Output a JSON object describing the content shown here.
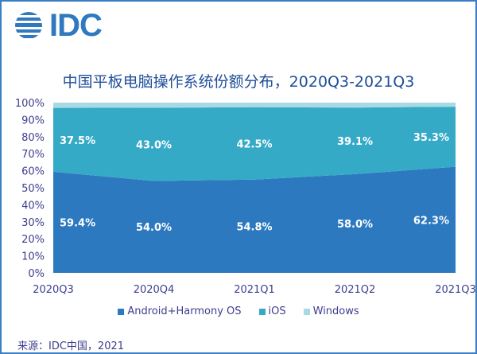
{
  "logo": {
    "text": "IDC"
  },
  "title": "中国平板电脑操作系统份额分布，2020Q3-2021Q3",
  "source": "来源：IDC中国，2021",
  "colors": {
    "android": "#2c79c0",
    "ios": "#35aac7",
    "windows": "#a8d9e4",
    "axis_text": "#3d3d8f",
    "title": "#1f4e9a",
    "border": "#3a7fc4"
  },
  "chart_data": {
    "type": "area",
    "stacked": true,
    "title": "中国平板电脑操作系统份额分布，2020Q3-2021Q3",
    "categories": [
      "2020Q3",
      "2020Q4",
      "2021Q1",
      "2021Q2",
      "2021Q3"
    ],
    "ylim": [
      0,
      100
    ],
    "yticks": [
      "0%",
      "10%",
      "20%",
      "30%",
      "40%",
      "50%",
      "60%",
      "70%",
      "80%",
      "90%",
      "100%"
    ],
    "legend_position": "bottom",
    "grid": false,
    "series": [
      {
        "name": "Android+Harmony OS",
        "values": [
          59.4,
          54.0,
          54.8,
          58.0,
          62.3
        ],
        "labels": [
          "59.4%",
          "54.0%",
          "54.8%",
          "58.0%",
          "62.3%"
        ]
      },
      {
        "name": "iOS",
        "values": [
          37.5,
          43.0,
          42.5,
          39.1,
          35.3
        ],
        "labels": [
          "37.5%",
          "43.0%",
          "42.5%",
          "39.1%",
          "35.3%"
        ]
      },
      {
        "name": "Windows",
        "values": [
          3.1,
          3.0,
          2.7,
          2.9,
          2.4
        ]
      }
    ]
  }
}
